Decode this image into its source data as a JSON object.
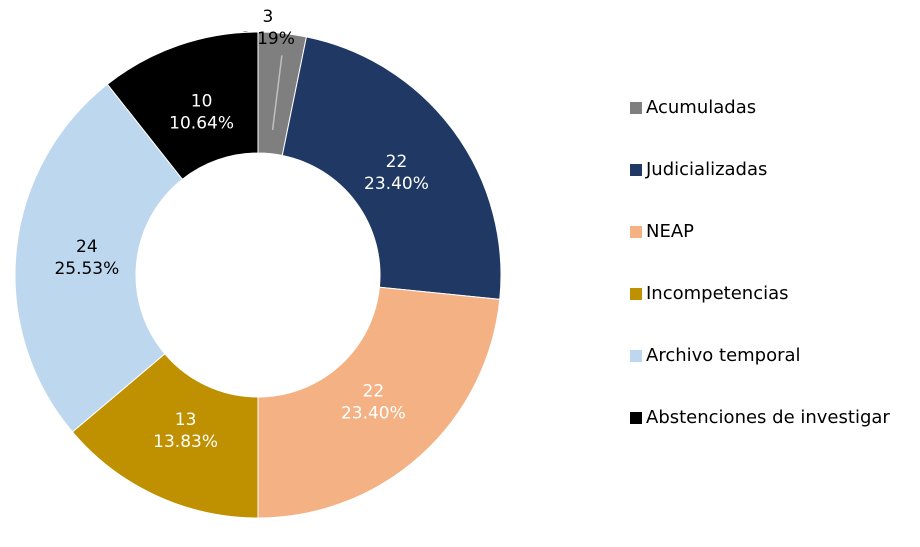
{
  "chart_data": {
    "type": "donut",
    "categories": [
      "Acumuladas",
      "Judicializadas",
      "NEAP",
      "Incompetencias",
      "Archivo temporal",
      "Abstenciones de investigar"
    ],
    "values": [
      3,
      22,
      22,
      13,
      24,
      10
    ],
    "percent_labels": [
      "3.19%",
      "23.40%",
      "23.40%",
      "13.83%",
      "25.53%",
      "10.64%"
    ],
    "colors": [
      "#7f7f7f",
      "#1f3864",
      "#f4b183",
      "#bf9000",
      "#bdd7ee",
      "#000000"
    ],
    "label_colors": [
      "#000000",
      "#ffffff",
      "#ffffff",
      "#ffffff",
      "#000000",
      "#ffffff"
    ],
    "legend": "right"
  }
}
